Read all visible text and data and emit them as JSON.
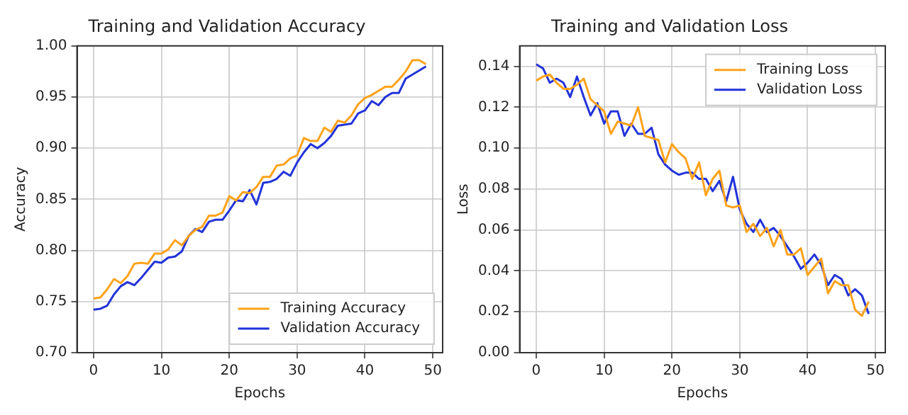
{
  "chart_data": [
    {
      "type": "line",
      "title": "Training and Validation Accuracy",
      "xlabel": "Epochs",
      "ylabel": "Accuracy",
      "x": [
        0,
        1,
        2,
        3,
        4,
        5,
        6,
        7,
        8,
        9,
        10,
        11,
        12,
        13,
        14,
        15,
        16,
        17,
        18,
        19,
        20,
        21,
        22,
        23,
        24,
        25,
        26,
        27,
        28,
        29,
        30,
        31,
        32,
        33,
        34,
        35,
        36,
        37,
        38,
        39,
        40,
        41,
        42,
        43,
        44,
        45,
        46,
        47,
        48,
        49
      ],
      "series": [
        {
          "name": "Training Accuracy",
          "color": "#ffa21a",
          "values": [
            0.753,
            0.754,
            0.762,
            0.772,
            0.768,
            0.775,
            0.787,
            0.788,
            0.787,
            0.797,
            0.797,
            0.801,
            0.81,
            0.805,
            0.814,
            0.82,
            0.823,
            0.834,
            0.834,
            0.837,
            0.853,
            0.849,
            0.857,
            0.856,
            0.862,
            0.872,
            0.872,
            0.883,
            0.884,
            0.89,
            0.893,
            0.91,
            0.907,
            0.907,
            0.92,
            0.916,
            0.927,
            0.925,
            0.932,
            0.943,
            0.949,
            0.952,
            0.956,
            0.96,
            0.96,
            0.967,
            0.975,
            0.986,
            0.986,
            0.982
          ]
        },
        {
          "name": "Validation Accuracy",
          "color": "#2233d8",
          "values": [
            0.742,
            0.743,
            0.746,
            0.757,
            0.765,
            0.769,
            0.766,
            0.773,
            0.781,
            0.789,
            0.788,
            0.793,
            0.794,
            0.799,
            0.814,
            0.821,
            0.818,
            0.828,
            0.83,
            0.83,
            0.839,
            0.849,
            0.848,
            0.859,
            0.845,
            0.866,
            0.867,
            0.87,
            0.877,
            0.873,
            0.886,
            0.896,
            0.904,
            0.9,
            0.905,
            0.912,
            0.922,
            0.923,
            0.924,
            0.934,
            0.937,
            0.946,
            0.942,
            0.95,
            0.954,
            0.954,
            0.968,
            0.972,
            0.976,
            0.98
          ]
        }
      ],
      "xlim": [
        -2.45,
        51.45
      ],
      "xticks": [
        0,
        10,
        20,
        30,
        40,
        50
      ],
      "ylim": [
        0.7,
        1.0
      ],
      "yticks": [
        {
          "value": 0.7,
          "label": "0.70"
        },
        {
          "value": 0.75,
          "label": "0.75"
        },
        {
          "value": 0.8,
          "label": "0.80"
        },
        {
          "value": 0.85,
          "label": "0.85"
        },
        {
          "value": 0.9,
          "label": "0.90"
        },
        {
          "value": 0.95,
          "label": "0.95"
        },
        {
          "value": 1.0,
          "label": "1.00"
        }
      ],
      "grid": true,
      "legend": "bottom right",
      "line_style": "solid",
      "marker": "none"
    },
    {
      "type": "line",
      "title": "Training and Validation Loss",
      "xlabel": "Epochs",
      "ylabel": "Loss",
      "x": [
        0,
        1,
        2,
        3,
        4,
        5,
        6,
        7,
        8,
        9,
        10,
        11,
        12,
        13,
        14,
        15,
        16,
        17,
        18,
        19,
        20,
        21,
        22,
        23,
        24,
        25,
        26,
        27,
        28,
        29,
        30,
        31,
        32,
        33,
        34,
        35,
        36,
        37,
        38,
        39,
        40,
        41,
        42,
        43,
        44,
        45,
        46,
        47,
        48,
        49
      ],
      "series": [
        {
          "name": "Training Loss",
          "color": "#ffa21a",
          "values": [
            0.133,
            0.135,
            0.136,
            0.132,
            0.129,
            0.129,
            0.131,
            0.134,
            0.124,
            0.121,
            0.118,
            0.107,
            0.113,
            0.112,
            0.111,
            0.12,
            0.106,
            0.105,
            0.104,
            0.093,
            0.102,
            0.098,
            0.095,
            0.085,
            0.093,
            0.077,
            0.085,
            0.089,
            0.072,
            0.071,
            0.072,
            0.059,
            0.063,
            0.057,
            0.061,
            0.052,
            0.06,
            0.048,
            0.048,
            0.051,
            0.038,
            0.042,
            0.046,
            0.029,
            0.035,
            0.033,
            0.033,
            0.021,
            0.018,
            0.025
          ]
        },
        {
          "name": "Validation Loss",
          "color": "#2233d8",
          "values": [
            0.141,
            0.139,
            0.132,
            0.134,
            0.132,
            0.125,
            0.135,
            0.125,
            0.116,
            0.122,
            0.112,
            0.118,
            0.118,
            0.106,
            0.112,
            0.107,
            0.107,
            0.11,
            0.097,
            0.092,
            0.089,
            0.087,
            0.088,
            0.088,
            0.085,
            0.085,
            0.079,
            0.084,
            0.074,
            0.086,
            0.07,
            0.063,
            0.059,
            0.065,
            0.059,
            0.061,
            0.057,
            0.052,
            0.047,
            0.041,
            0.044,
            0.048,
            0.043,
            0.033,
            0.038,
            0.036,
            0.028,
            0.031,
            0.028,
            0.019
          ]
        }
      ],
      "xlim": [
        -2.45,
        51.45
      ],
      "xticks": [
        0,
        10,
        20,
        30,
        40,
        50
      ],
      "ylim": [
        0.0,
        0.15
      ],
      "yticks": [
        {
          "value": 0,
          "label": "0.00"
        },
        {
          "value": 0.02,
          "label": "0.02"
        },
        {
          "value": 0.04,
          "label": "0.04"
        },
        {
          "value": 0.06,
          "label": "0.06"
        },
        {
          "value": 0.08,
          "label": "0.08"
        },
        {
          "value": 0.1,
          "label": "0.10"
        },
        {
          "value": 0.12,
          "label": "0.12"
        },
        {
          "value": 0.14,
          "label": "0.14"
        }
      ],
      "grid": true,
      "legend": "top right",
      "line_style": "solid",
      "marker": "none"
    }
  ]
}
